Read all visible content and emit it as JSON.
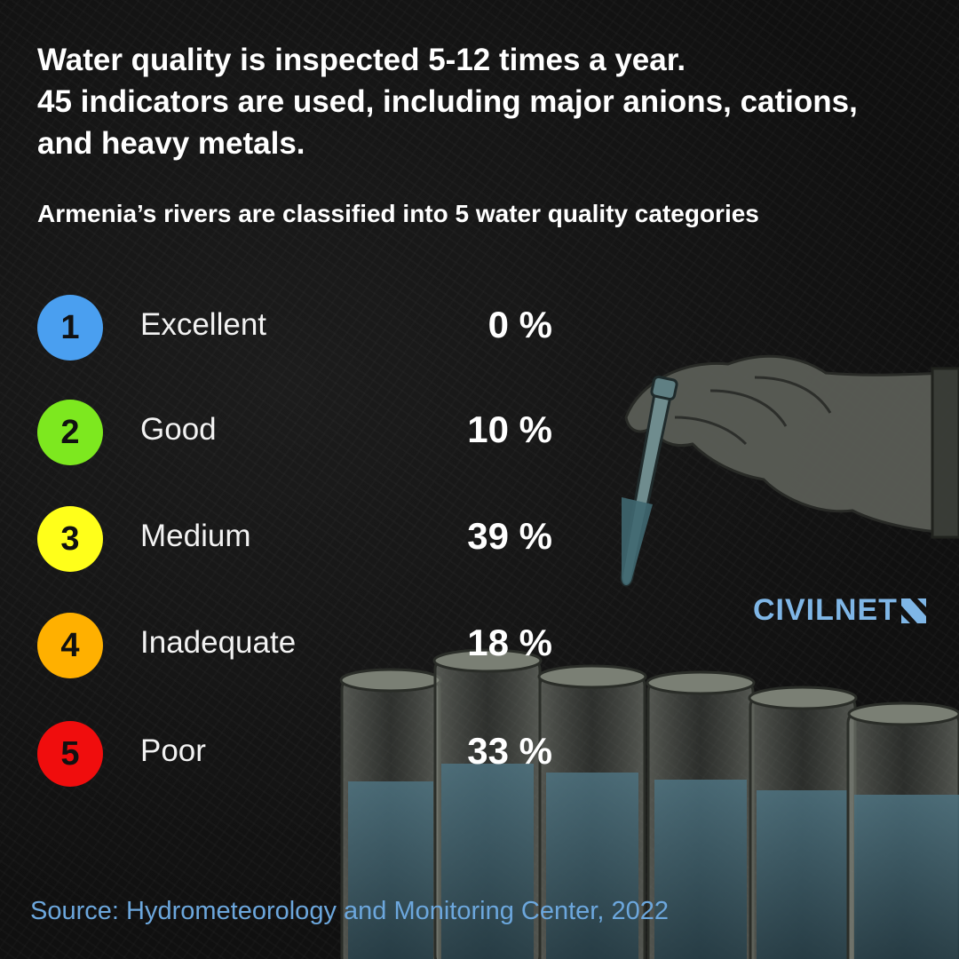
{
  "headline": {
    "line1": "Water quality is inspected 5-12 times a year.",
    "line2": "45 indicators are used, including major anions, cations,",
    "line3": "and heavy metals."
  },
  "subheading": "Armenia’s rivers are classified into 5 water quality categories",
  "categories": [
    {
      "number": "1",
      "label": "Excellent",
      "value": "0 %",
      "color": "#4a9ff0"
    },
    {
      "number": "2",
      "label": "Good",
      "value": "10 %",
      "color": "#7de81f"
    },
    {
      "number": "3",
      "label": "Medium",
      "value": "39 %",
      "color": "#ffff1a"
    },
    {
      "number": "4",
      "label": "Inadequate",
      "value": "18 %",
      "color": "#ffb000"
    },
    {
      "number": "5",
      "label": "Poor",
      "value": "33 %",
      "color": "#f00d0d"
    }
  ],
  "logo": {
    "text": "CIVILNET",
    "color": "#7fb6e6"
  },
  "source": "Source: Hydrometeorology and Monitoring Center, 2022",
  "illustration": {
    "subject": "gloved-hand-with-pipette-and-test-tubes",
    "liquid_color": "#3c5a66"
  }
}
